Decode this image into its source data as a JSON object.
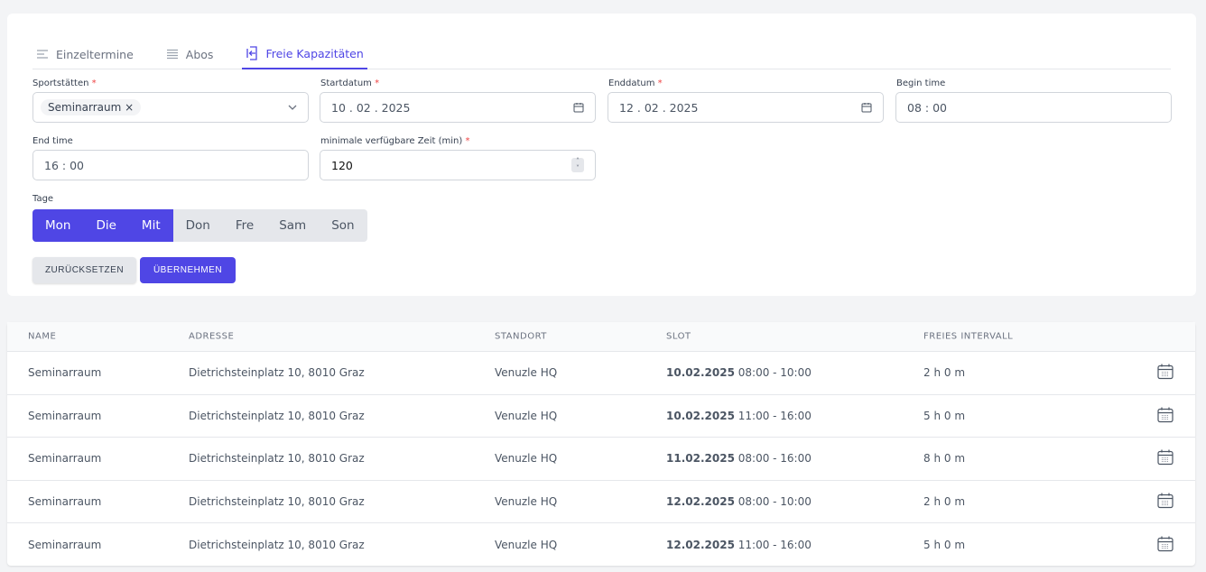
{
  "tabs": [
    {
      "label": "Einzeltermine",
      "icon": "list-icon"
    },
    {
      "label": "Abos",
      "icon": "stack-icon"
    },
    {
      "label": "Freie Kapazitäten",
      "icon": "enter-icon",
      "active": true
    }
  ],
  "form": {
    "sportstaetten": {
      "label": "Sportstätten",
      "chip": "Seminarraum"
    },
    "startdatum": {
      "label": "Startdatum",
      "value": "10 . 02 . 2025"
    },
    "enddatum": {
      "label": "Enddatum",
      "value": "12 . 02 . 2025"
    },
    "begin_time": {
      "label": "Begin time",
      "value": "08 : 00"
    },
    "end_time": {
      "label": "End time",
      "value": "16 : 00"
    },
    "min_time": {
      "label": "minimale verfügbare Zeit (min)",
      "value": "120"
    },
    "tage": {
      "label": "Tage",
      "days": [
        {
          "label": "Mon",
          "on": true
        },
        {
          "label": "Die",
          "on": true
        },
        {
          "label": "Mit",
          "on": true
        },
        {
          "label": "Don",
          "on": false
        },
        {
          "label": "Fre",
          "on": false
        },
        {
          "label": "Sam",
          "on": false
        },
        {
          "label": "Son",
          "on": false
        }
      ]
    },
    "reset_label": "ZURÜCKSETZEN",
    "apply_label": "ÜBERNEHMEN"
  },
  "colors": {
    "accent": "#4f46e5",
    "required": "#ef4444"
  },
  "table": {
    "headers": [
      "NAME",
      "ADRESSE",
      "STANDORT",
      "SLOT",
      "FREIES INTERVALL"
    ],
    "rows": [
      {
        "name": "Seminarraum",
        "address": "Dietrichsteinplatz 10, 8010 Graz",
        "location": "Venuzle HQ",
        "date": "10.02.2025",
        "time": "08:00 - 10:00",
        "interval": "2 h 0 m"
      },
      {
        "name": "Seminarraum",
        "address": "Dietrichsteinplatz 10, 8010 Graz",
        "location": "Venuzle HQ",
        "date": "10.02.2025",
        "time": "11:00 - 16:00",
        "interval": "5 h 0 m"
      },
      {
        "name": "Seminarraum",
        "address": "Dietrichsteinplatz 10, 8010 Graz",
        "location": "Venuzle HQ",
        "date": "11.02.2025",
        "time": "08:00 - 16:00",
        "interval": "8 h 0 m"
      },
      {
        "name": "Seminarraum",
        "address": "Dietrichsteinplatz 10, 8010 Graz",
        "location": "Venuzle HQ",
        "date": "12.02.2025",
        "time": "08:00 - 10:00",
        "interval": "2 h 0 m"
      },
      {
        "name": "Seminarraum",
        "address": "Dietrichsteinplatz 10, 8010 Graz",
        "location": "Venuzle HQ",
        "date": "12.02.2025",
        "time": "11:00 - 16:00",
        "interval": "5 h 0 m"
      }
    ]
  }
}
